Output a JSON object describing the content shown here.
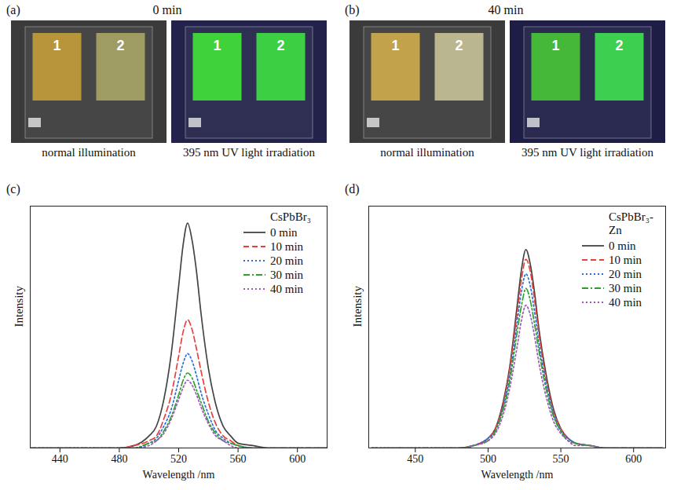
{
  "photo_panels": [
    {
      "label": "(a)",
      "title": "0 min",
      "views": [
        {
          "caption": "normal illumination",
          "films": [
            "1",
            "2"
          ],
          "colors": [
            "#b8953a",
            "#9e9c62"
          ],
          "background": "#3b3b3b"
        },
        {
          "caption": "395 nm UV light irradiation",
          "films": [
            "1",
            "2"
          ],
          "colors": [
            "#3fd23a",
            "#3ccf44"
          ],
          "background": "#23224a"
        }
      ]
    },
    {
      "label": "(b)",
      "title": "40 min",
      "views": [
        {
          "caption": "normal illumination",
          "films": [
            "1",
            "2"
          ],
          "colors": [
            "#c2a24a",
            "#b9b690"
          ],
          "background": "#3b3b3b"
        },
        {
          "caption": "395 nm UV light irradiation",
          "films": [
            "1",
            "2"
          ],
          "colors": [
            "#45b83a",
            "#3ccf50"
          ],
          "background": "#1e1d46"
        }
      ]
    }
  ],
  "chart_data": [
    {
      "type": "line",
      "panel_label": "(c)",
      "title": "CsPbBr₃",
      "x_label": "Wavelength /nm",
      "y_label": "Intensity",
      "xlim": [
        420,
        620
      ],
      "xticks": [
        440,
        480,
        520,
        560,
        600
      ],
      "ylim": [
        0,
        1
      ],
      "yticks": [],
      "tick_labels": "x",
      "legend": "upper right",
      "x": [
        420,
        460,
        480,
        490,
        500,
        505,
        510,
        515,
        520,
        523,
        526,
        529,
        532,
        535,
        540,
        545,
        550,
        555,
        560,
        570,
        580,
        600,
        620
      ],
      "series": [
        {
          "name": "0 min",
          "color": "#444444",
          "line_style": "solid",
          "values": [
            0,
            0,
            0,
            0.01,
            0.05,
            0.09,
            0.2,
            0.39,
            0.67,
            0.84,
            0.93,
            0.86,
            0.73,
            0.56,
            0.33,
            0.18,
            0.09,
            0.05,
            0.02,
            0.01,
            0,
            0,
            0
          ]
        },
        {
          "name": "10 min",
          "color": "#e8413c",
          "line_style": "dashed",
          "values": [
            0,
            0,
            0,
            0.01,
            0.03,
            0.05,
            0.12,
            0.22,
            0.38,
            0.48,
            0.53,
            0.49,
            0.41,
            0.32,
            0.19,
            0.1,
            0.05,
            0.03,
            0.01,
            0,
            0,
            0,
            0
          ]
        },
        {
          "name": "20 min",
          "color": "#2b6fd6",
          "line_style": "dotted",
          "values": [
            0,
            0,
            0,
            0,
            0.02,
            0.04,
            0.09,
            0.16,
            0.28,
            0.35,
            0.39,
            0.36,
            0.3,
            0.23,
            0.14,
            0.07,
            0.04,
            0.02,
            0.01,
            0,
            0,
            0,
            0
          ]
        },
        {
          "name": "30 min",
          "color": "#2ca02c",
          "line_style": "dashdot",
          "values": [
            0,
            0,
            0,
            0,
            0.02,
            0.03,
            0.07,
            0.13,
            0.22,
            0.28,
            0.31,
            0.29,
            0.24,
            0.19,
            0.11,
            0.06,
            0.03,
            0.02,
            0.01,
            0,
            0,
            0,
            0
          ]
        },
        {
          "name": "40 min",
          "color": "#9b59b6",
          "line_style": "dotted",
          "values": [
            0,
            0,
            0,
            0,
            0.01,
            0.03,
            0.06,
            0.12,
            0.2,
            0.25,
            0.28,
            0.26,
            0.22,
            0.17,
            0.1,
            0.05,
            0.03,
            0.01,
            0,
            0,
            0,
            0,
            0
          ]
        }
      ]
    },
    {
      "type": "line",
      "panel_label": "(d)",
      "title": "CsPbBr₃-Zn",
      "x_label": "Wavelength /nm",
      "y_label": "Intensity",
      "xlim": [
        418,
        622
      ],
      "xticks": [
        450,
        500,
        550,
        600
      ],
      "ylim": [
        0,
        1
      ],
      "yticks": [],
      "tick_labels": "x",
      "legend": "upper right",
      "x": [
        420,
        460,
        480,
        490,
        500,
        505,
        510,
        515,
        520,
        523,
        526,
        529,
        532,
        535,
        540,
        545,
        550,
        555,
        560,
        570,
        580,
        600,
        620
      ],
      "series": [
        {
          "name": "0 min",
          "color": "#444444",
          "line_style": "solid",
          "values": [
            0,
            0,
            0,
            0.01,
            0.04,
            0.08,
            0.18,
            0.34,
            0.59,
            0.74,
            0.82,
            0.76,
            0.64,
            0.49,
            0.3,
            0.16,
            0.08,
            0.04,
            0.02,
            0.01,
            0,
            0,
            0
          ]
        },
        {
          "name": "10 min",
          "color": "#e8413c",
          "line_style": "dashed",
          "values": [
            0,
            0,
            0,
            0.01,
            0.04,
            0.08,
            0.17,
            0.33,
            0.56,
            0.7,
            0.78,
            0.73,
            0.61,
            0.47,
            0.28,
            0.15,
            0.08,
            0.04,
            0.02,
            0.01,
            0,
            0,
            0
          ]
        },
        {
          "name": "20 min",
          "color": "#2b6fd6",
          "line_style": "dotted",
          "values": [
            0,
            0,
            0,
            0.01,
            0.04,
            0.07,
            0.16,
            0.3,
            0.52,
            0.65,
            0.72,
            0.67,
            0.56,
            0.43,
            0.26,
            0.14,
            0.07,
            0.04,
            0.02,
            0.01,
            0,
            0,
            0
          ]
        },
        {
          "name": "30 min",
          "color": "#2ca02c",
          "line_style": "dashdot",
          "values": [
            0,
            0,
            0,
            0.01,
            0.03,
            0.07,
            0.15,
            0.28,
            0.48,
            0.59,
            0.66,
            0.61,
            0.51,
            0.4,
            0.24,
            0.13,
            0.07,
            0.03,
            0.02,
            0.01,
            0,
            0,
            0
          ]
        },
        {
          "name": "40 min",
          "color": "#9b59b6",
          "line_style": "dotted",
          "values": [
            0,
            0,
            0,
            0.01,
            0.03,
            0.06,
            0.13,
            0.25,
            0.42,
            0.53,
            0.59,
            0.55,
            0.46,
            0.35,
            0.21,
            0.11,
            0.06,
            0.03,
            0.01,
            0.01,
            0,
            0,
            0
          ]
        }
      ]
    }
  ]
}
